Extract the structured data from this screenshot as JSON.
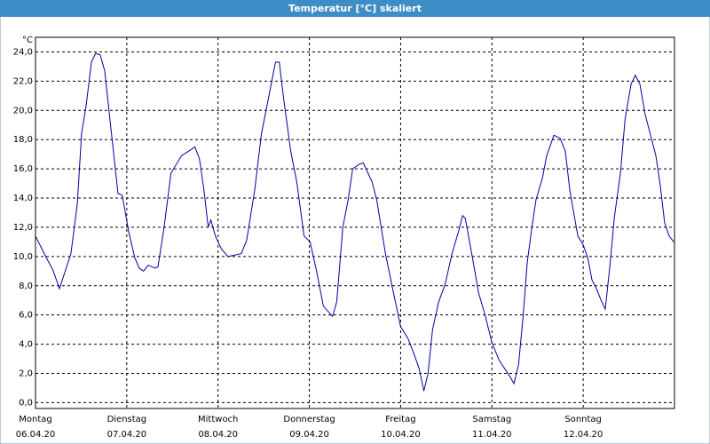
{
  "chart_data": {
    "type": "line",
    "title": "Temperatur [°C] skaliert",
    "y_unit": "°C",
    "x": [
      0,
      2.3,
      4.7,
      6.3,
      9.3,
      11.0,
      12.1,
      13.3,
      14.7,
      15.8,
      17.0,
      18.2,
      19.8,
      21.7,
      22.8,
      24.5,
      26.1,
      27.3,
      28.4,
      29.6,
      31.5,
      32.2,
      33.8,
      35.6,
      38.4,
      40.8,
      41.9,
      43.1,
      44.3,
      45.4,
      46.1,
      47.3,
      48.9,
      50.6,
      52.4,
      54.1,
      55.5,
      57.6,
      59.4,
      61.3,
      63.1,
      64.1,
      65.2,
      67.1,
      68.7,
      70.6,
      72.2,
      73.9,
      75.7,
      78.1,
      79.2,
      80.8,
      82.2,
      83.4,
      85.0,
      86.2,
      87.4,
      88.5,
      89.7,
      92.0,
      93.9,
      96.0,
      97.9,
      99.7,
      100.9,
      102.1,
      103.2,
      104.4,
      106.0,
      107.7,
      109.5,
      111.2,
      112.3,
      113.0,
      114.9,
      116.5,
      118.1,
      120.0,
      121.9,
      124.7,
      125.8,
      127.0,
      128.2,
      129.3,
      130.5,
      131.6,
      133.3,
      134.4,
      136.3,
      137.9,
      139.3,
      140.5,
      141.7,
      142.6,
      144.0,
      145.2,
      146.3,
      147.5,
      148.7,
      149.8,
      151.0,
      152.2,
      153.8,
      155.0,
      156.6,
      157.7,
      158.9,
      160.3,
      161.9,
      163.1,
      164.3,
      165.4,
      166.6,
      167.8
    ],
    "series": [
      {
        "name": "Temperatur",
        "color": "#0000a0",
        "values": [
          11.4,
          10.2,
          9.0,
          7.8,
          10.2,
          13.6,
          18.4,
          20.3,
          23.3,
          23.9,
          23.8,
          22.7,
          18.8,
          14.3,
          14.2,
          11.7,
          9.9,
          9.2,
          9.0,
          9.4,
          9.2,
          9.3,
          12.0,
          15.7,
          16.9,
          17.3,
          17.5,
          16.7,
          14.5,
          12.0,
          12.5,
          11.4,
          10.5,
          10.0,
          10.1,
          10.2,
          11.1,
          14.5,
          18.4,
          20.9,
          23.3,
          23.3,
          20.9,
          17.2,
          15.1,
          11.4,
          11.0,
          9.0,
          6.6,
          5.9,
          6.9,
          12.0,
          13.9,
          16.0,
          16.3,
          16.4,
          15.7,
          15.1,
          13.9,
          10.2,
          7.8,
          5.2,
          4.4,
          3.2,
          2.3,
          0.8,
          2.0,
          5.0,
          6.9,
          8.1,
          10.2,
          11.7,
          12.8,
          12.6,
          9.9,
          7.5,
          6.1,
          4.1,
          2.9,
          1.8,
          1.3,
          2.6,
          5.9,
          9.6,
          12.0,
          13.9,
          15.4,
          16.9,
          18.3,
          18.1,
          17.2,
          14.5,
          12.7,
          11.4,
          10.8,
          9.9,
          8.4,
          7.8,
          7.0,
          6.4,
          9.3,
          12.7,
          15.7,
          19.4,
          21.8,
          22.4,
          21.8,
          19.7,
          18.1,
          16.9,
          14.8,
          12.3,
          11.4,
          11.0
        ]
      }
    ],
    "xlim": [
      0,
      168
    ],
    "xticks": [
      {
        "value": 0,
        "label": "Montag",
        "date": "06.04.20"
      },
      {
        "value": 24,
        "label": "Dienstag",
        "date": "07.04.20"
      },
      {
        "value": 48,
        "label": "Mittwoch",
        "date": "08.04.20"
      },
      {
        "value": 72,
        "label": "Donnerstag",
        "date": "09.04.20"
      },
      {
        "value": 96,
        "label": "Freitag",
        "date": "10.04.20"
      },
      {
        "value": 120,
        "label": "Samstag",
        "date": "11.04.20"
      },
      {
        "value": 144,
        "label": "Sonntag",
        "date": "12.04.20"
      }
    ],
    "ylim": [
      -0.4,
      25.0
    ],
    "yticks": [
      {
        "value": 0,
        "label": "0,0"
      },
      {
        "value": 2,
        "label": "2,0"
      },
      {
        "value": 4,
        "label": "4,0"
      },
      {
        "value": 6,
        "label": "6,0"
      },
      {
        "value": 8,
        "label": "8,0"
      },
      {
        "value": 10,
        "label": "10,0"
      },
      {
        "value": 12,
        "label": "12,0"
      },
      {
        "value": 14,
        "label": "14,0"
      },
      {
        "value": 16,
        "label": "16,0"
      },
      {
        "value": 18,
        "label": "18,0"
      },
      {
        "value": 20,
        "label": "20,0"
      },
      {
        "value": 22,
        "label": "22,0"
      },
      {
        "value": 24,
        "label": "24,0"
      }
    ],
    "grid": true
  }
}
